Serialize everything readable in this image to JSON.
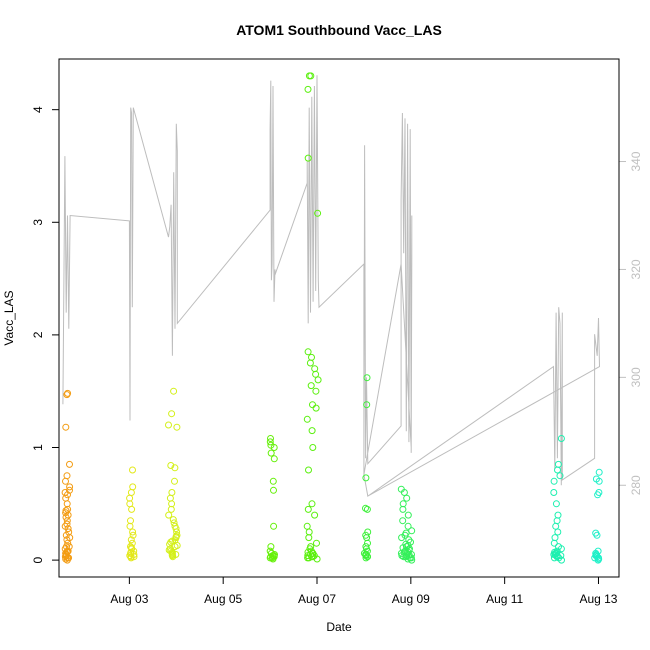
{
  "chart_data": {
    "type": "scatter",
    "title": "ATOM1 Southbound Vacc_LAS",
    "xlabel": "Date",
    "ylabel": "Vacc_LAS",
    "x_is_date": true,
    "xlim": [
      "2021-08-01T12:00",
      "2021-08-13T10:30"
    ],
    "ylim": [
      -0.15,
      4.45
    ],
    "x_ticks": [
      {
        "date": "2021-08-03T00:00",
        "label": "Aug 03"
      },
      {
        "date": "2021-08-05T00:00",
        "label": "Aug 05"
      },
      {
        "date": "2021-08-07T00:00",
        "label": "Aug 07"
      },
      {
        "date": "2021-08-09T00:00",
        "label": "Aug 09"
      },
      {
        "date": "2021-08-11T00:00",
        "label": "Aug 11"
      },
      {
        "date": "2021-08-13T00:00",
        "label": "Aug 13"
      }
    ],
    "y_ticks": [
      0,
      1,
      2,
      3,
      4
    ],
    "y2lim": [
      263,
      359
    ],
    "y2_ticks": [
      280,
      300,
      320,
      340
    ],
    "y2_color": "#c0c0c0",
    "grid": false,
    "legend": "none",
    "point_clusters": [
      {
        "t0": "2021-08-01T15:00",
        "t1": "2021-08-01T17:30",
        "color": "#f39c12",
        "values": [
          0.0,
          0.02,
          0.03,
          0.05,
          0.07,
          0.08,
          0.1,
          0.12,
          0.15,
          0.18,
          0.22,
          0.25,
          0.28,
          0.3,
          0.35,
          0.38,
          0.4,
          0.42,
          0.45,
          0.5,
          0.55,
          0.6,
          0.62,
          0.65,
          0.7,
          0.75,
          0.85,
          1.18,
          1.47,
          1.48,
          0.08,
          0.04,
          0.01,
          0.2,
          0.32,
          0.44,
          0.58,
          0.12,
          0.06,
          0.02
        ]
      },
      {
        "t0": "2021-08-03T00:00",
        "t1": "2021-08-03T02:30",
        "color": "#e3e81a",
        "values": [
          0.02,
          0.03,
          0.04,
          0.05,
          0.06,
          0.08,
          0.1,
          0.12,
          0.15,
          0.18,
          0.22,
          0.25,
          0.3,
          0.35,
          0.45,
          0.5,
          0.55,
          0.6,
          0.65,
          0.8,
          0.03,
          0.07,
          0.11
        ]
      },
      {
        "t0": "2021-08-03T20:00",
        "t1": "2021-08-04T00:30",
        "color": "#d4f01a",
        "values": [
          0.03,
          0.04,
          0.05,
          0.06,
          0.07,
          0.08,
          0.1,
          0.12,
          0.14,
          0.16,
          0.18,
          0.2,
          0.22,
          0.25,
          0.28,
          0.3,
          0.33,
          0.36,
          0.4,
          0.45,
          0.5,
          0.55,
          0.6,
          0.7,
          0.82,
          0.84,
          1.18,
          1.2,
          1.3,
          1.5,
          0.05,
          0.09,
          0.13,
          0.17,
          0.21
        ]
      },
      {
        "t0": "2021-08-06T00:00",
        "t1": "2021-08-06T02:30",
        "color": "#66f00a",
        "values": [
          0.01,
          0.02,
          0.03,
          0.04,
          0.05,
          0.06,
          0.08,
          0.12,
          0.3,
          0.62,
          0.7,
          0.9,
          0.95,
          1.0,
          1.02,
          1.05,
          1.08,
          0.02,
          0.04,
          0.03
        ]
      },
      {
        "t0": "2021-08-06T19:00",
        "t1": "2021-08-07T01:00",
        "color": "#5cf010",
        "values": [
          0.01,
          0.02,
          0.03,
          0.04,
          0.05,
          0.06,
          0.07,
          0.08,
          0.1,
          0.12,
          0.15,
          0.2,
          0.25,
          0.3,
          0.4,
          0.45,
          0.5,
          0.8,
          1.0,
          1.15,
          1.25,
          1.35,
          1.38,
          1.5,
          1.55,
          1.6,
          1.65,
          1.7,
          1.75,
          1.8,
          1.85,
          3.08,
          3.57,
          4.18,
          4.3,
          4.3,
          0.02,
          0.04,
          0.06,
          0.03
        ]
      },
      {
        "t0": "2021-08-08T00:00",
        "t1": "2021-08-08T02:00",
        "color": "#3ef03a",
        "values": [
          0.02,
          0.03,
          0.04,
          0.05,
          0.06,
          0.08,
          0.1,
          0.12,
          0.15,
          0.2,
          0.22,
          0.25,
          0.45,
          0.46,
          0.73,
          1.38,
          1.62,
          0.03,
          0.05
        ]
      },
      {
        "t0": "2021-08-08T19:00",
        "t1": "2021-08-09T00:30",
        "color": "#34f05a",
        "values": [
          0.0,
          0.01,
          0.02,
          0.03,
          0.04,
          0.05,
          0.06,
          0.07,
          0.08,
          0.09,
          0.1,
          0.12,
          0.14,
          0.16,
          0.18,
          0.2,
          0.22,
          0.24,
          0.26,
          0.3,
          0.35,
          0.4,
          0.45,
          0.5,
          0.55,
          0.6,
          0.63,
          0.02,
          0.04,
          0.06,
          0.08,
          0.11,
          0.13,
          0.03,
          0.05,
          0.07
        ]
      },
      {
        "t0": "2021-08-12T01:00",
        "t1": "2021-08-12T05:30",
        "color": "#1ef0b0",
        "values": [
          0.0,
          0.02,
          0.03,
          0.04,
          0.05,
          0.06,
          0.08,
          0.1,
          0.12,
          0.15,
          0.2,
          0.25,
          0.3,
          0.35,
          0.4,
          0.5,
          0.6,
          0.7,
          0.75,
          0.8,
          0.85,
          1.08,
          0.02,
          0.04,
          0.06,
          0.03,
          0.05,
          0.07
        ]
      },
      {
        "t0": "2021-08-12T22:00",
        "t1": "2021-08-13T00:30",
        "color": "#1ef0c8",
        "values": [
          0.0,
          0.01,
          0.02,
          0.03,
          0.04,
          0.05,
          0.06,
          0.08,
          0.22,
          0.24,
          0.58,
          0.6,
          0.7,
          0.72,
          0.78,
          0.02,
          0.04
        ]
      }
    ],
    "line_series": {
      "color": "#bdbdbd",
      "points": [
        [
          "2021-08-01T14:00",
          295
        ],
        [
          "2021-08-01T15:00",
          341
        ],
        [
          "2021-08-01T15:40",
          312
        ],
        [
          "2021-08-01T16:20",
          330
        ],
        [
          "2021-08-01T17:00",
          309
        ],
        [
          "2021-08-01T17:40",
          330
        ],
        [
          "2021-08-03T00:00",
          329
        ],
        [
          "2021-08-03T00:20",
          292
        ],
        [
          "2021-08-03T00:40",
          350
        ],
        [
          "2021-08-03T01:10",
          349
        ],
        [
          "2021-08-03T01:30",
          313
        ],
        [
          "2021-08-03T02:00",
          350
        ],
        [
          "2021-08-03T20:00",
          326
        ],
        [
          "2021-08-03T20:40",
          328
        ],
        [
          "2021-08-03T21:20",
          332
        ],
        [
          "2021-08-03T22:00",
          304
        ],
        [
          "2021-08-03T22:40",
          338
        ],
        [
          "2021-08-03T23:20",
          309
        ],
        [
          "2021-08-04T00:00",
          347
        ],
        [
          "2021-08-04T00:30",
          342
        ],
        [
          "2021-08-04T00:30",
          310
        ],
        [
          "2021-08-06T00:00",
          331
        ],
        [
          "2021-08-06T00:00",
          346
        ],
        [
          "2021-08-06T00:20",
          355
        ],
        [
          "2021-08-06T00:40",
          318
        ],
        [
          "2021-08-06T01:00",
          321
        ],
        [
          "2021-08-06T01:30",
          354
        ],
        [
          "2021-08-06T02:00",
          314
        ],
        [
          "2021-08-06T02:30",
          320
        ],
        [
          "2021-08-06T02:30",
          319
        ],
        [
          "2021-08-06T19:00",
          336
        ],
        [
          "2021-08-06T19:00",
          340
        ],
        [
          "2021-08-06T19:30",
          310
        ],
        [
          "2021-08-06T20:00",
          350
        ],
        [
          "2021-08-06T20:40",
          312
        ],
        [
          "2021-08-06T21:20",
          352
        ],
        [
          "2021-08-06T22:00",
          314
        ],
        [
          "2021-08-06T22:40",
          354
        ],
        [
          "2021-08-06T23:20",
          316
        ],
        [
          "2021-08-07T00:00",
          356
        ],
        [
          "2021-08-07T00:40",
          318
        ],
        [
          "2021-08-07T01:00",
          313
        ],
        [
          "2021-08-07T01:00",
          313
        ],
        [
          "2021-08-08T00:00",
          321
        ],
        [
          "2021-08-08T00:00",
          282
        ],
        [
          "2021-08-08T00:20",
          343
        ],
        [
          "2021-08-08T00:50",
          285
        ],
        [
          "2021-08-08T01:20",
          300
        ],
        [
          "2021-08-08T02:00",
          284
        ],
        [
          "2021-08-08T02:00",
          284
        ],
        [
          "2021-08-08T19:00",
          291
        ],
        [
          "2021-08-08T19:00",
          333
        ],
        [
          "2021-08-08T19:40",
          349
        ],
        [
          "2021-08-08T20:20",
          323
        ],
        [
          "2021-08-08T21:00",
          348
        ],
        [
          "2021-08-08T21:40",
          290
        ],
        [
          "2021-08-08T22:20",
          347
        ],
        [
          "2021-08-08T23:00",
          288
        ],
        [
          "2021-08-08T23:40",
          346
        ],
        [
          "2021-08-09T00:10",
          286
        ],
        [
          "2021-08-09T00:30",
          330
        ],
        [
          "2021-08-09T00:30",
          322
        ],
        [
          "2021-08-09T00:10",
          287
        ],
        [
          "2021-08-08T19:00",
          321
        ],
        [
          "2021-08-08T00:00",
          282
        ],
        [
          "2021-08-08T02:00",
          278
        ],
        [
          "2021-08-12T01:00",
          302
        ],
        [
          "2021-08-12T01:00",
          302
        ],
        [
          "2021-08-12T01:40",
          283
        ],
        [
          "2021-08-12T02:20",
          312
        ],
        [
          "2021-08-12T03:00",
          285
        ],
        [
          "2021-08-12T03:40",
          313
        ],
        [
          "2021-08-12T04:20",
          310
        ],
        [
          "2021-08-12T05:00",
          280
        ],
        [
          "2021-08-12T05:30",
          312
        ],
        [
          "2021-08-12T05:30",
          281
        ],
        [
          "2021-08-12T22:00",
          285
        ],
        [
          "2021-08-12T22:00",
          308
        ],
        [
          "2021-08-12T22:40",
          306
        ],
        [
          "2021-08-12T23:20",
          304
        ],
        [
          "2021-08-13T00:00",
          311
        ],
        [
          "2021-08-13T00:30",
          302
        ],
        [
          "2021-08-13T00:30",
          302
        ],
        [
          "2021-08-08T02:00",
          278
        ]
      ]
    }
  }
}
